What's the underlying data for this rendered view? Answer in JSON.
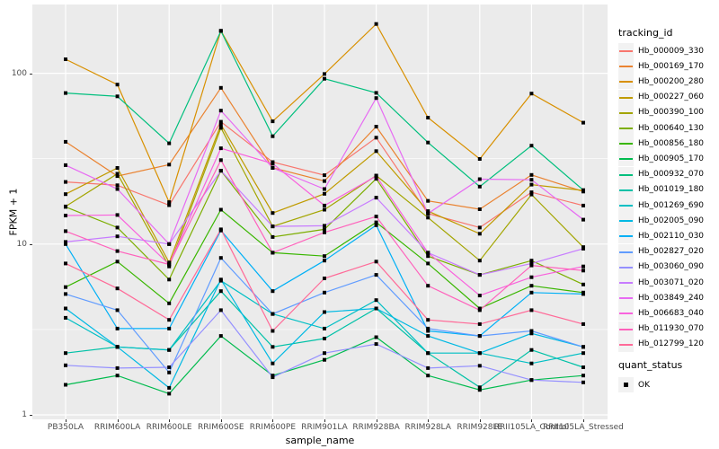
{
  "colors": {
    "panel_background": "#EBEBEB",
    "gridline": "#FFFFFF",
    "tick_text": "#4D4D4D",
    "axis_title_text": "#000000",
    "marker": "#000000",
    "legend_key_background": "#F2F2F2"
  },
  "chart_data": {
    "type": "line",
    "title": "",
    "xlabel": "sample_name",
    "ylabel": "FPKM + 1",
    "y_scale": "log10",
    "ylim": [
      0.95,
      250
    ],
    "y_ticks": [
      "1",
      "10",
      "100"
    ],
    "y_minor_gridlines": [
      3.1623,
      31.623
    ],
    "grid": "white major+minor horizontal, white vertical at each category, on grey panel",
    "legend_position": "right",
    "legend_title": "tracking_id",
    "quant_legend": {
      "title": "quant_status",
      "value": "OK",
      "marker": "black-square"
    },
    "point_marker": "black-square",
    "categories": [
      "PB350LA",
      "RRIM600LA",
      "RRIM600LE",
      "RRIM600SE",
      "RRIM600PE",
      "RRIM901LA",
      "RRIM928BA",
      "RRIM928LA",
      "RRIM928LE",
      "RRII105LA_Control",
      "RRII105LA_Stressed"
    ],
    "series": [
      {
        "name": "Hb_000009_330",
        "color": "#F8766D",
        "values": [
          23.1,
          22.1,
          16.9,
          52.0,
          30.2,
          25.3,
          42.0,
          15.1,
          12.5,
          20.1,
          16.8
        ]
      },
      {
        "name": "Hb_000169_170",
        "color": "#EA8331",
        "values": [
          39.7,
          25.0,
          29.2,
          82.2,
          28.0,
          23.4,
          48.7,
          17.9,
          16.0,
          25.4,
          20.3
        ]
      },
      {
        "name": "Hb_000200_280",
        "color": "#D89000",
        "values": [
          120.8,
          85.9,
          17.6,
          177.4,
          52.3,
          99.0,
          194.4,
          55.0,
          31.5,
          76.1,
          51.4
        ]
      },
      {
        "name": "Hb_000227_060",
        "color": "#C09B00",
        "values": [
          19.6,
          27.9,
          7.8,
          50.1,
          15.2,
          19.7,
          35.0,
          15.6,
          11.5,
          22.3,
          20.6
        ]
      },
      {
        "name": "Hb_000390_100",
        "color": "#A3A500",
        "values": [
          16.6,
          25.8,
          7.4,
          47.9,
          12.7,
          15.9,
          25.2,
          14.3,
          8.0,
          19.5,
          9.6
        ]
      },
      {
        "name": "Hb_000640_130",
        "color": "#7CAE00",
        "values": [
          16.5,
          12.5,
          6.2,
          26.9,
          11.0,
          12.2,
          24.1,
          8.5,
          6.6,
          8.0,
          5.8
        ]
      },
      {
        "name": "Hb_000856_180",
        "color": "#39B600",
        "values": [
          5.6,
          7.9,
          4.5,
          15.9,
          8.9,
          8.5,
          13.4,
          7.7,
          4.2,
          5.7,
          5.2
        ]
      },
      {
        "name": "Hb_000905_170",
        "color": "#00BB4E",
        "values": [
          1.5,
          1.7,
          1.33,
          2.9,
          1.7,
          2.1,
          2.85,
          1.7,
          1.4,
          1.6,
          1.7
        ]
      },
      {
        "name": "Hb_000932_070",
        "color": "#00BF7D",
        "values": [
          76.6,
          73.3,
          38.9,
          176.8,
          42.8,
          92.9,
          76.8,
          39.3,
          21.7,
          37.7,
          20.7
        ]
      },
      {
        "name": "Hb_001019_180",
        "color": "#00C1A7",
        "values": [
          2.3,
          2.5,
          2.4,
          5.3,
          2.5,
          2.8,
          4.2,
          2.3,
          1.45,
          2.4,
          1.9
        ]
      },
      {
        "name": "Hb_001269_690",
        "color": "#00BFC4",
        "values": [
          3.7,
          2.5,
          2.4,
          6.1,
          3.9,
          3.2,
          4.7,
          2.3,
          2.3,
          2.0,
          2.3
        ]
      },
      {
        "name": "Hb_002005_090",
        "color": "#00B9E3",
        "values": [
          4.2,
          2.5,
          1.44,
          6.2,
          2.0,
          4.0,
          4.2,
          2.9,
          2.3,
          3.0,
          2.5
        ]
      },
      {
        "name": "Hb_002110_030",
        "color": "#00B0F6",
        "values": [
          10.0,
          3.2,
          3.2,
          12.0,
          5.3,
          8.0,
          12.9,
          3.1,
          2.9,
          5.2,
          5.1
        ]
      },
      {
        "name": "Hb_002827_020",
        "color": "#619CFF",
        "values": [
          5.1,
          4.1,
          1.77,
          8.3,
          3.9,
          5.2,
          6.6,
          3.2,
          2.9,
          3.1,
          2.5
        ]
      },
      {
        "name": "Hb_003060_090",
        "color": "#9590FF",
        "values": [
          1.95,
          1.88,
          1.9,
          4.1,
          1.66,
          2.3,
          2.6,
          1.88,
          1.94,
          1.6,
          1.55
        ]
      },
      {
        "name": "Hb_003071_020",
        "color": "#C77CFF",
        "values": [
          10.3,
          11.1,
          10.0,
          26.9,
          12.7,
          12.8,
          18.7,
          8.9,
          6.6,
          7.7,
          9.4
        ]
      },
      {
        "name": "Hb_003849_240",
        "color": "#E76BF3",
        "values": [
          29.0,
          21.0,
          10.0,
          60.4,
          27.9,
          21.0,
          71.6,
          15.1,
          24.0,
          23.8,
          13.9
        ]
      },
      {
        "name": "Hb_006683_040",
        "color": "#F962DD",
        "values": [
          14.7,
          14.8,
          7.6,
          36.4,
          29.6,
          16.8,
          25.0,
          8.9,
          5.0,
          6.4,
          7.4
        ]
      },
      {
        "name": "Hb_011930_070",
        "color": "#FF62BC",
        "values": [
          11.9,
          9.1,
          7.6,
          31.0,
          8.9,
          11.7,
          14.5,
          5.7,
          4.1,
          7.5,
          7.0
        ]
      },
      {
        "name": "Hb_012799_120",
        "color": "#FF6A98",
        "values": [
          7.7,
          5.5,
          3.6,
          12.2,
          3.1,
          6.3,
          7.9,
          3.6,
          3.4,
          4.1,
          3.4
        ]
      }
    ]
  }
}
